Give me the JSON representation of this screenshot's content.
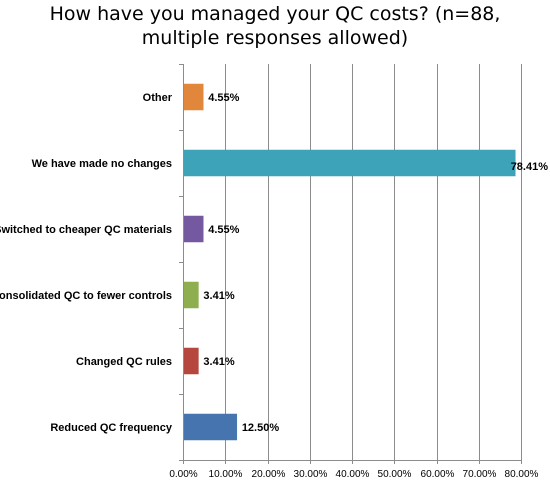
{
  "chart_data": {
    "type": "bar",
    "orientation": "horizontal",
    "title_lines": [
      "How have you managed your QC costs? (n=88,",
      "multiple responses allowed)"
    ],
    "categories": [
      "Other",
      "We have  made no changes",
      "Switched to cheaper QC materials",
      "Consolidated QC to fewer controls",
      "Changed QC rules",
      "Reduced QC frequency"
    ],
    "values": [
      4.55,
      78.41,
      4.55,
      3.41,
      3.41,
      12.5
    ],
    "data_labels": [
      "4.55%",
      "78.41%",
      "4.55%",
      "3.41%",
      "3.41%",
      "12.50%"
    ],
    "colors": [
      "#E0873B",
      "#3DA3B8",
      "#7559A0",
      "#8FAE4F",
      "#B5473F",
      "#4674AE"
    ],
    "xlim": [
      0,
      80
    ],
    "x_ticks": [
      "0.00%",
      "10.00%",
      "20.00%",
      "30.00%",
      "40.00%",
      "50.00%",
      "60.00%",
      "70.00%",
      "80.00%"
    ],
    "grid": true,
    "legend": "none",
    "xlabel": "",
    "ylabel": ""
  }
}
